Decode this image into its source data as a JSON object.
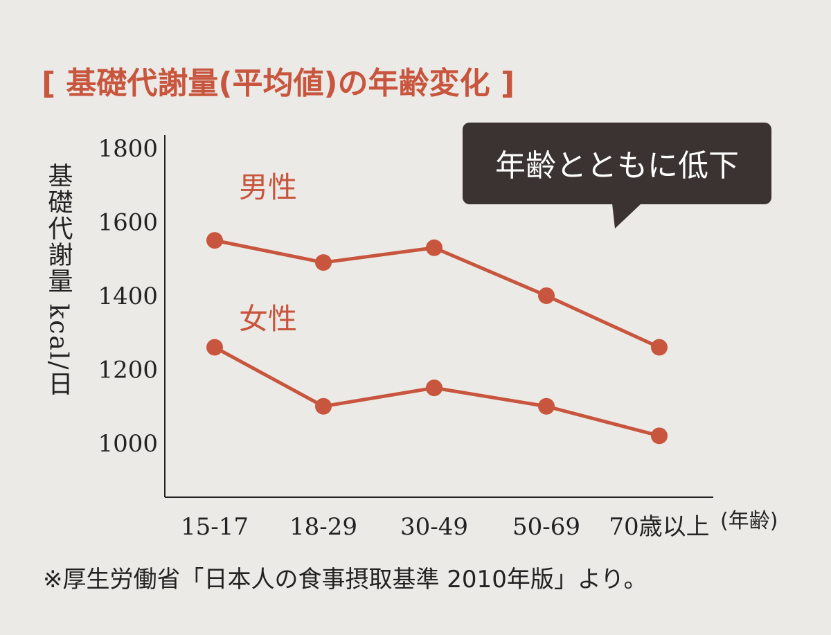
{
  "colors": {
    "accent": "#c8553d",
    "text": "#222222",
    "callout_bg": "#3b3331",
    "background": "#eceae6"
  },
  "callout": "年齢とともに低下",
  "source_note": "※厚生労働省「日本人の食事摂取基準 2010年版」より。",
  "chart_data": {
    "type": "line",
    "title": "[ 基礎代謝量(平均値)の年齢変化 ]",
    "xlabel": "(年齢)",
    "ylabel": "基礎代謝量 kcal/日",
    "categories": [
      "15-17",
      "18-29",
      "30-49",
      "50-69",
      "70歳以上"
    ],
    "yticks": [
      1000,
      1200,
      1400,
      1600,
      1800
    ],
    "ylim": [
      1000,
      1800
    ],
    "grid": false,
    "series": [
      {
        "name": "男性",
        "values": [
          1550,
          1490,
          1530,
          1400,
          1260
        ]
      },
      {
        "name": "女性",
        "values": [
          1260,
          1100,
          1150,
          1100,
          1020
        ]
      }
    ]
  }
}
